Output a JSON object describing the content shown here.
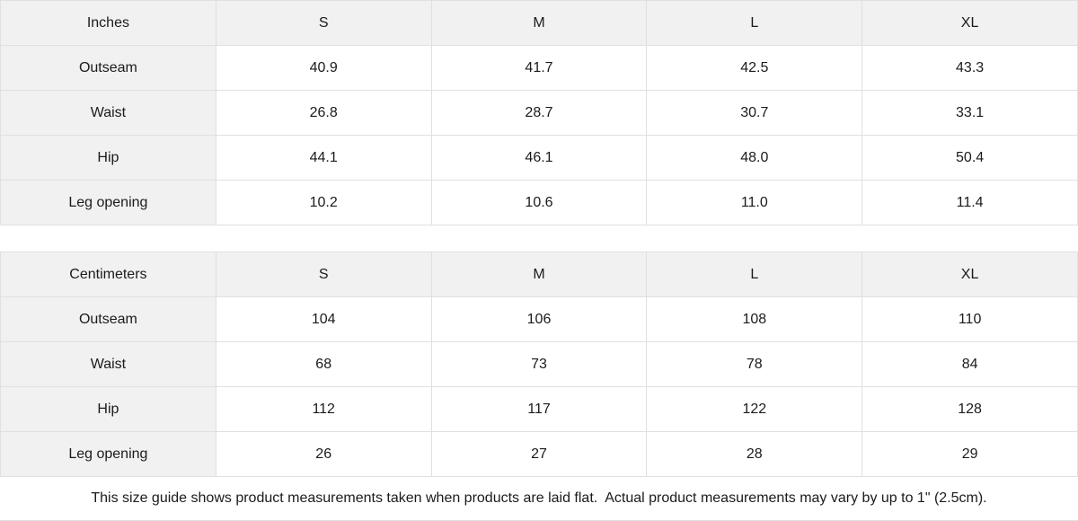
{
  "colors": {
    "header_bg": "#f1f1f1",
    "border": "#e0e0e0",
    "text": "#1b1b1b",
    "cell_bg": "#ffffff"
  },
  "chart_data": [
    {
      "type": "table",
      "title": "Inches",
      "columns": [
        "Inches",
        "S",
        "M",
        "L",
        "XL"
      ],
      "rows": [
        [
          "Outseam",
          "40.9",
          "41.7",
          "42.5",
          "43.3"
        ],
        [
          "Waist",
          "26.8",
          "28.7",
          "30.7",
          "33.1"
        ],
        [
          "Hip",
          "44.1",
          "46.1",
          "48.0",
          "50.4"
        ],
        [
          "Leg opening",
          "10.2",
          "10.6",
          "11.0",
          "11.4"
        ]
      ]
    },
    {
      "type": "table",
      "title": "Centimeters",
      "columns": [
        "Centimeters",
        "S",
        "M",
        "L",
        "XL"
      ],
      "rows": [
        [
          "Outseam",
          "104",
          "106",
          "108",
          "110"
        ],
        [
          "Waist",
          "68",
          "73",
          "78",
          "84"
        ],
        [
          "Hip",
          "112",
          "117",
          "122",
          "128"
        ],
        [
          "Leg opening",
          "26",
          "27",
          "28",
          "29"
        ]
      ]
    }
  ],
  "footer": {
    "note": "This size guide shows product measurements taken when products are laid flat.  Actual product measurements may vary by up to 1\" (2.5cm)."
  }
}
